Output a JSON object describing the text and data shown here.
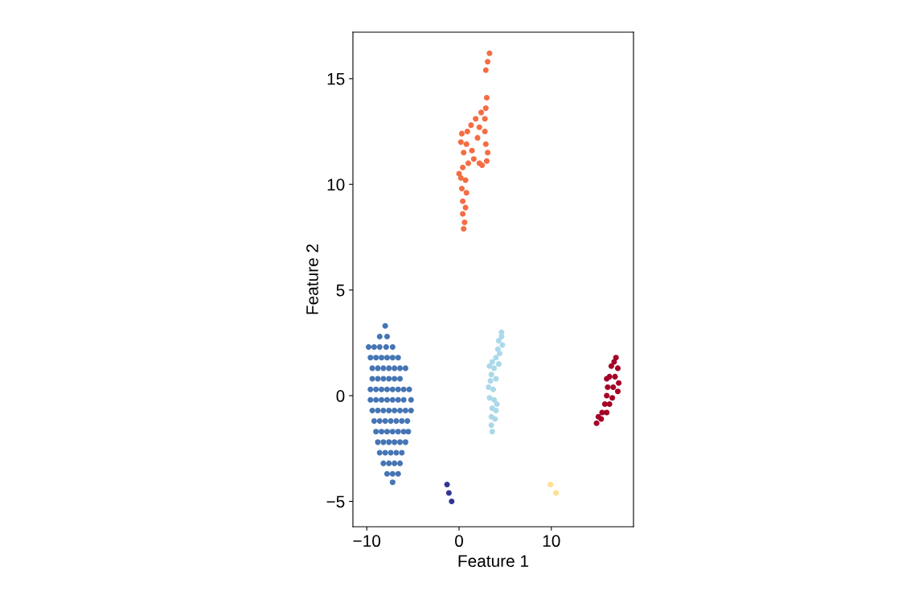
{
  "chart_data": {
    "type": "scatter",
    "xlabel": "Feature 1",
    "ylabel": "Feature 2",
    "xlim": [
      -11.5,
      18.9
    ],
    "ylim": [
      -6.2,
      17.2
    ],
    "xticks": [
      {
        "value": -10,
        "label": "−10"
      },
      0,
      10
    ],
    "yticks": [
      {
        "value": -5,
        "label": "−5"
      },
      0,
      5,
      10,
      15
    ],
    "grid": false,
    "legend": false,
    "marker": "circle",
    "series": [
      {
        "color": "#4575b4",
        "x": [
          -8.0,
          -8.6,
          -7.8,
          -9.8,
          -9.2,
          -8.6,
          -7.9,
          -7.2,
          -9.6,
          -9.0,
          -8.4,
          -7.8,
          -7.2,
          -6.6,
          -9.4,
          -8.8,
          -8.2,
          -7.6,
          -7.0,
          -6.4,
          -5.8,
          -9.4,
          -8.8,
          -8.2,
          -7.6,
          -7.0,
          -6.4,
          -9.6,
          -9.0,
          -8.4,
          -7.8,
          -7.2,
          -6.6,
          -6.0,
          -5.4,
          -9.6,
          -9.0,
          -8.4,
          -7.8,
          -7.2,
          -6.6,
          -6.0,
          -5.2,
          -9.4,
          -8.8,
          -8.2,
          -7.6,
          -7.0,
          -6.4,
          -5.8,
          -5.2,
          -9.2,
          -8.6,
          -8.0,
          -7.4,
          -6.8,
          -6.2,
          -5.6,
          -9.0,
          -8.4,
          -7.8,
          -7.2,
          -6.6,
          -6.0,
          -5.5,
          -8.8,
          -8.2,
          -7.6,
          -7.0,
          -6.4,
          -5.8,
          -8.6,
          -8.0,
          -7.4,
          -6.8,
          -6.2,
          -8.2,
          -7.6,
          -7.0,
          -6.4,
          -7.8,
          -7.2,
          -6.6,
          -7.2
        ],
        "values": [
          3.3,
          2.8,
          2.8,
          2.3,
          2.3,
          2.3,
          2.3,
          2.3,
          1.8,
          1.8,
          1.8,
          1.8,
          1.8,
          1.8,
          1.3,
          1.3,
          1.3,
          1.3,
          1.3,
          1.3,
          1.3,
          0.8,
          0.8,
          0.8,
          0.8,
          0.8,
          0.8,
          0.3,
          0.3,
          0.3,
          0.3,
          0.3,
          0.3,
          0.3,
          0.3,
          -0.2,
          -0.2,
          -0.2,
          -0.2,
          -0.2,
          -0.2,
          -0.2,
          -0.2,
          -0.7,
          -0.7,
          -0.7,
          -0.7,
          -0.7,
          -0.7,
          -0.7,
          -0.7,
          -1.2,
          -1.2,
          -1.2,
          -1.2,
          -1.2,
          -1.2,
          -1.2,
          -1.7,
          -1.7,
          -1.7,
          -1.7,
          -1.7,
          -1.7,
          -1.7,
          -2.2,
          -2.2,
          -2.2,
          -2.2,
          -2.2,
          -2.2,
          -2.7,
          -2.7,
          -2.7,
          -2.7,
          -2.7,
          -3.2,
          -3.2,
          -3.2,
          -3.2,
          -3.7,
          -3.7,
          -3.7,
          -4.1
        ]
      },
      {
        "color": "#abd9e9",
        "x": [
          4.6,
          4.3,
          4.7,
          4.4,
          4.0,
          3.3,
          3.8,
          4.3,
          3.5,
          4.0,
          3.2,
          3.7,
          3.3,
          3.8,
          3.6,
          4.0,
          3.5,
          3.9,
          3.5,
          3.6,
          4.2,
          4.6,
          3.6,
          3.4,
          4.1
        ],
        "values": [
          3.0,
          2.6,
          2.4,
          2.0,
          1.8,
          1.4,
          1.3,
          1.5,
          1.0,
          0.8,
          0.4,
          0.3,
          -0.1,
          -0.2,
          -0.6,
          -0.7,
          -1.0,
          -1.1,
          -1.4,
          -1.7,
          2.2,
          2.8,
          1.6,
          0.7,
          -0.4
        ]
      },
      {
        "color": "#a50026",
        "x": [
          17.0,
          16.5,
          17.2,
          16.3,
          16.9,
          17.3,
          16.1,
          16.7,
          17.2,
          16.0,
          16.6,
          15.8,
          16.3,
          15.5,
          16.0,
          15.1,
          14.9,
          15.4,
          16.8,
          16.0
        ],
        "values": [
          1.8,
          1.4,
          1.3,
          0.9,
          0.9,
          0.6,
          0.4,
          0.4,
          0.2,
          0.0,
          -0.1,
          -0.4,
          -0.4,
          -0.8,
          -0.8,
          -1.0,
          -1.3,
          -1.1,
          1.6,
          0.8
        ]
      },
      {
        "color": "#313695",
        "x": [
          -1.3,
          -1.1,
          -0.8
        ],
        "values": [
          -4.2,
          -4.6,
          -5.0
        ]
      },
      {
        "color": "#fee090",
        "x": [
          9.9,
          10.5
        ],
        "values": [
          -4.2,
          -4.6
        ]
      },
      {
        "color": "#f46d43",
        "x": [
          3.3,
          3.1,
          2.9,
          3.0,
          2.9,
          2.4,
          1.8,
          2.8,
          1.3,
          2.2,
          0.3,
          0.9,
          2.0,
          2.8,
          0.2,
          0.8,
          2.9,
          3.1,
          0.5,
          1.4,
          3.0,
          2.2,
          1.6,
          1.0,
          0.4,
          0.2,
          0.7,
          0.3,
          0.8,
          0.4,
          0.7,
          0.4,
          0.6,
          0.5,
          2.5,
          0.0
        ],
        "values": [
          16.2,
          15.8,
          15.4,
          14.1,
          13.6,
          13.4,
          13.1,
          13.1,
          12.8,
          12.7,
          12.4,
          12.5,
          12.2,
          12.5,
          12.0,
          11.9,
          11.9,
          11.5,
          11.5,
          11.6,
          11.1,
          11.0,
          11.2,
          11.0,
          10.8,
          10.3,
          10.2,
          9.8,
          9.6,
          9.2,
          8.9,
          8.6,
          8.2,
          7.9,
          10.9,
          10.5
        ]
      }
    ]
  }
}
